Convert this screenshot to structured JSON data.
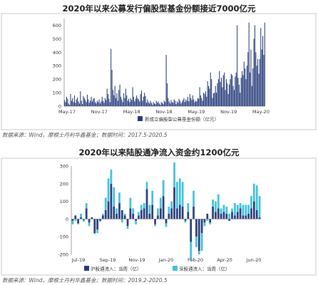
{
  "chart_data": [
    {
      "type": "bar",
      "title": "2020年以来公募发行偏股型基金份额接近7000亿元",
      "xlabel": "",
      "ylabel": "",
      "ylim": [
        0,
        650
      ],
      "yticks": [
        0,
        100,
        200,
        300,
        400,
        500,
        600
      ],
      "x_tick_labels": [
        "May-17",
        "Nov-17",
        "May-18",
        "Nov-18",
        "May-19",
        "Nov-19",
        "May-20"
      ],
      "legend": "新成立偏股型公募基金份额（亿元）",
      "legend_placement": "bottom",
      "grid": false,
      "color": "#263b7a",
      "values": [
        45,
        30,
        70,
        55,
        20,
        10,
        90,
        40,
        60,
        30,
        80,
        25,
        50,
        65,
        35,
        20,
        110,
        40,
        15,
        75,
        60,
        45,
        30,
        85,
        50,
        25,
        40,
        70,
        35,
        55,
        60,
        30,
        20,
        40,
        30,
        50,
        20,
        35,
        70,
        40,
        25,
        60,
        45,
        130,
        90,
        55,
        30,
        425,
        270,
        120,
        80,
        150,
        60,
        95,
        40,
        120,
        160,
        70,
        50,
        30,
        95,
        60,
        130,
        80,
        40,
        55,
        30,
        60,
        45,
        140,
        70,
        35,
        55,
        80,
        60,
        50,
        35,
        90,
        115,
        40,
        70,
        100,
        75,
        25,
        50,
        30,
        20,
        40,
        25,
        10,
        30,
        20,
        15,
        40,
        25,
        35,
        20,
        10,
        30,
        25,
        15,
        40,
        30,
        380,
        170,
        60,
        35,
        20,
        45,
        30,
        25,
        50,
        40,
        15,
        35,
        25,
        55,
        40,
        20,
        30,
        45,
        60,
        30,
        50,
        40,
        70,
        35,
        90,
        60,
        45,
        80,
        50,
        30,
        40,
        35,
        60,
        55,
        140,
        80,
        60,
        40,
        100,
        90,
        110,
        70,
        185,
        150,
        130,
        250,
        200,
        60,
        95,
        100,
        150,
        100,
        170,
        200,
        260,
        180,
        210,
        140,
        230,
        250,
        120,
        200,
        170,
        90,
        160,
        200,
        240,
        230,
        150,
        120,
        220,
        250,
        600,
        210,
        160,
        100,
        210,
        260,
        230,
        330,
        280,
        200,
        300,
        400,
        620,
        250,
        420,
        150,
        280,
        500,
        600,
        400,
        300,
        350,
        240,
        350,
        580,
        420,
        520,
        380,
        620
      ],
      "source": "数据来源：Wind，摩根士丹利华鑫基金；数据时间：2017.5-2020.5"
    },
    {
      "type": "bar",
      "title": "2020年以来陆股通净流入资金约1200亿元",
      "xlabel": "",
      "ylabel": "",
      "ylim": [
        -200,
        300
      ],
      "yticks": [
        -200,
        -100,
        0,
        100,
        200,
        300
      ],
      "x_tick_labels": [
        "Jul-19",
        "Sep-19",
        "Nov-19",
        "Jan-20",
        "Feb-20",
        "Apr-20",
        "Jun-20"
      ],
      "legend_placement": "bottom",
      "grid": false,
      "series": [
        {
          "name": "沪股通流入：当周（亿）",
          "color": "#263b7a",
          "values": [
            -10,
            20,
            -25,
            10,
            -5,
            60,
            -20,
            10,
            -80,
            -60,
            -10,
            20,
            50,
            100,
            200,
            70,
            30,
            90,
            50,
            20,
            -40,
            60,
            30,
            -10,
            20,
            50,
            60,
            170,
            30,
            80,
            -30,
            20,
            60,
            130,
            -25,
            30,
            60,
            180,
            60,
            80,
            70,
            -10,
            40,
            -130,
            70,
            -100,
            -180,
            -80,
            -20,
            30,
            -20,
            70,
            40,
            60,
            30,
            40,
            30,
            -10,
            40,
            20,
            40,
            60,
            20,
            20,
            30,
            60,
            100,
            50,
            10
          ]
        },
        {
          "name": "深股通流入：当周（亿）",
          "color": "#3fc1d9",
          "values": [
            -20,
            -10,
            -5,
            20,
            -10,
            30,
            -20,
            0,
            -5,
            -20,
            -5,
            10,
            70,
            130,
            80,
            110,
            30,
            60,
            -20,
            10,
            -15,
            60,
            30,
            -20,
            20,
            30,
            30,
            40,
            50,
            80,
            -10,
            40,
            60,
            90,
            -20,
            40,
            40,
            140,
            150,
            150,
            140,
            -10,
            50,
            -100,
            90,
            -60,
            -20,
            -100,
            -20,
            -10,
            -10,
            40,
            60,
            80,
            30,
            40,
            40,
            30,
            20,
            70,
            40,
            30,
            60,
            60,
            50,
            70,
            100,
            140,
            120
          ]
        }
      ],
      "source": "数据来源：Wind，摩根士丹利华鑫基金；数据时间：2019.2-2020.5"
    }
  ]
}
